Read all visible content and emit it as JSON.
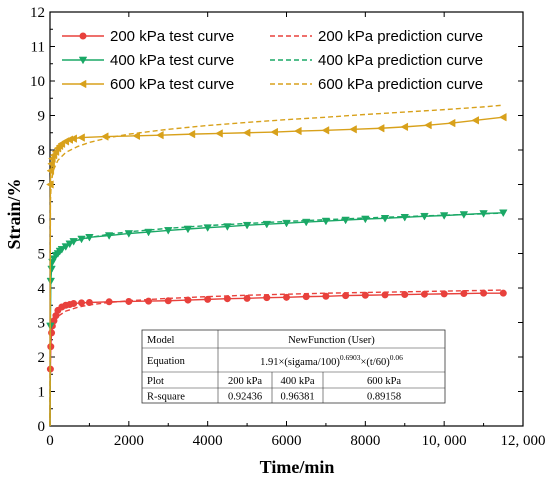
{
  "chart_data": {
    "type": "line",
    "xlabel": "Time/min",
    "ylabel": "Strain/%",
    "xlim": [
      0,
      12000
    ],
    "ylim": [
      0,
      12
    ],
    "x_ticks": [
      0,
      2000,
      4000,
      6000,
      8000,
      10000,
      12000
    ],
    "x_tick_labels": [
      "0",
      "2000",
      "4000",
      "6000",
      "8000",
      "10, 000",
      "12, 000"
    ],
    "y_ticks": [
      0,
      1,
      2,
      3,
      4,
      5,
      6,
      7,
      8,
      9,
      10,
      11,
      12
    ],
    "y_tick_labels": [
      "0",
      "1",
      "2",
      "3",
      "4",
      "5",
      "6",
      "7",
      "8",
      "9",
      "10",
      "11",
      "12"
    ],
    "legend_position": "top",
    "series": [
      {
        "name": "200 kPa test curve",
        "kind": "test",
        "color": "#E8413C",
        "marker": "circle",
        "x": [
          0,
          10,
          20,
          40,
          60,
          100,
          150,
          200,
          300,
          400,
          500,
          600,
          800,
          1000,
          1500,
          2000,
          2500,
          3000,
          3500,
          4000,
          4500,
          5000,
          5500,
          6000,
          6500,
          7000,
          7500,
          8000,
          8500,
          9000,
          9500,
          10000,
          10500,
          11000,
          11500
        ],
        "y": [
          0,
          1.65,
          2.3,
          2.7,
          2.9,
          3.05,
          3.2,
          3.35,
          3.45,
          3.5,
          3.52,
          3.55,
          3.57,
          3.58,
          3.6,
          3.61,
          3.62,
          3.63,
          3.65,
          3.67,
          3.69,
          3.7,
          3.72,
          3.73,
          3.75,
          3.76,
          3.78,
          3.79,
          3.8,
          3.81,
          3.82,
          3.83,
          3.84,
          3.85,
          3.85
        ]
      },
      {
        "name": "200 kPa prediction curve",
        "kind": "prediction",
        "color": "#E8413C",
        "x": [
          0,
          10,
          30,
          60,
          100,
          200,
          400,
          700,
          1000,
          1500,
          2000,
          3000,
          4000,
          5000,
          6000,
          7000,
          8000,
          9000,
          10000,
          11000,
          11500
        ],
        "y": [
          0,
          2.3,
          2.65,
          2.85,
          3.0,
          3.18,
          3.33,
          3.44,
          3.51,
          3.58,
          3.63,
          3.7,
          3.75,
          3.79,
          3.82,
          3.85,
          3.87,
          3.89,
          3.91,
          3.93,
          3.94
        ]
      },
      {
        "name": "400 kPa test curve",
        "kind": "test",
        "color": "#1AA866",
        "marker": "triangle-down",
        "x": [
          0,
          10,
          20,
          40,
          60,
          100,
          150,
          200,
          250,
          300,
          400,
          500,
          600,
          800,
          1000,
          1500,
          2000,
          2500,
          3000,
          3500,
          4000,
          4500,
          5000,
          5500,
          6000,
          6500,
          7000,
          7500,
          8000,
          8500,
          9000,
          9500,
          10000,
          10500,
          11000,
          11500
        ],
        "y": [
          0,
          2.9,
          4.2,
          4.55,
          4.75,
          4.85,
          4.95,
          5.0,
          5.07,
          5.12,
          5.2,
          5.28,
          5.35,
          5.42,
          5.47,
          5.52,
          5.58,
          5.62,
          5.67,
          5.71,
          5.75,
          5.78,
          5.82,
          5.85,
          5.88,
          5.91,
          5.94,
          5.97,
          6.0,
          6.02,
          6.05,
          6.08,
          6.1,
          6.13,
          6.16,
          6.18
        ]
      },
      {
        "name": "400 kPa prediction curve",
        "kind": "prediction",
        "color": "#1AA866",
        "x": [
          0,
          10,
          30,
          60,
          100,
          200,
          400,
          700,
          1000,
          1500,
          2000,
          3000,
          4000,
          5000,
          6000,
          7000,
          8000,
          9000,
          10000,
          11000,
          11500
        ],
        "y": [
          0,
          4.3,
          4.6,
          4.78,
          4.9,
          5.07,
          5.25,
          5.38,
          5.46,
          5.56,
          5.63,
          5.73,
          5.81,
          5.87,
          5.93,
          5.98,
          6.03,
          6.07,
          6.11,
          6.15,
          6.17
        ]
      },
      {
        "name": "600 kPa test curve",
        "kind": "test",
        "color": "#D8A11B",
        "marker": "triangle-left",
        "x": [
          0,
          10,
          20,
          40,
          60,
          100,
          150,
          200,
          250,
          300,
          400,
          500,
          600,
          800,
          1400,
          2200,
          2800,
          3600,
          4300,
          5000,
          5700,
          6300,
          7000,
          7700,
          8400,
          9000,
          9600,
          10200,
          10800,
          11500
        ],
        "y": [
          0,
          7.0,
          7.4,
          7.6,
          7.75,
          7.85,
          7.95,
          8.05,
          8.12,
          8.18,
          8.25,
          8.3,
          8.33,
          8.36,
          8.39,
          8.41,
          8.43,
          8.46,
          8.48,
          8.5,
          8.52,
          8.55,
          8.57,
          8.6,
          8.63,
          8.67,
          8.72,
          8.78,
          8.86,
          8.95
        ]
      },
      {
        "name": "600 kPa prediction curve",
        "kind": "prediction",
        "color": "#D8A11B",
        "x": [
          0,
          10,
          30,
          60,
          100,
          200,
          400,
          700,
          1000,
          1500,
          2000,
          3000,
          4000,
          5000,
          6000,
          7000,
          8000,
          9000,
          10000,
          11000,
          11500
        ],
        "y": [
          0,
          6.5,
          7.0,
          7.25,
          7.45,
          7.7,
          7.93,
          8.1,
          8.22,
          8.36,
          8.46,
          8.6,
          8.71,
          8.8,
          8.88,
          8.95,
          9.03,
          9.1,
          9.17,
          9.25,
          9.3
        ]
      }
    ],
    "fit_table": {
      "rows": [
        {
          "label": "Model",
          "value": "NewFunction (User)"
        },
        {
          "label": "Equation",
          "value": "1.91×(sigama/100)^0.6903×(t/60)^0.06"
        },
        {
          "label": "Plot",
          "values": [
            "200 kPa",
            "400 kPa",
            "600 kPa"
          ]
        },
        {
          "label": "R-square",
          "values": [
            "0.92436",
            "0.96381",
            "0.89158"
          ]
        }
      ],
      "equation_parts": {
        "a": "1.91×(sigama/100)",
        "exp1": "0.6903",
        "b": "×(t/60)",
        "exp2": "0.06"
      }
    }
  }
}
